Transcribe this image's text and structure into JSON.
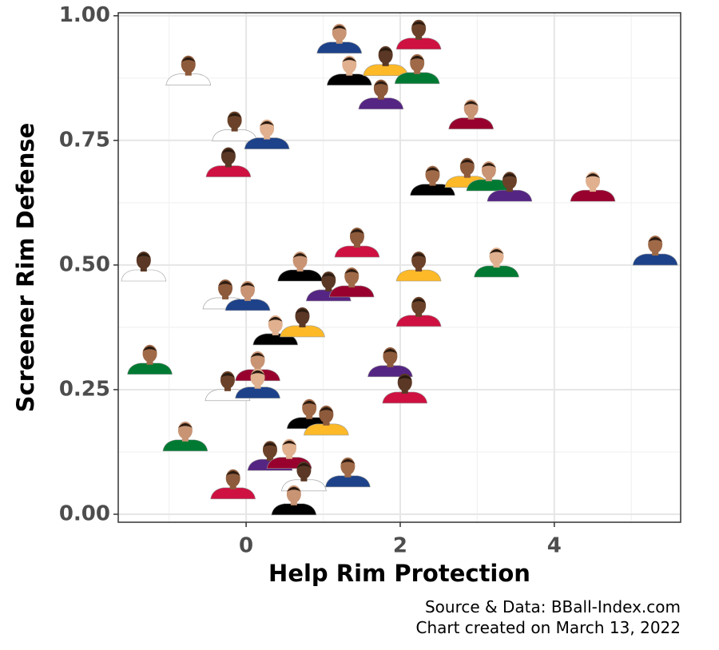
{
  "chart_data": {
    "type": "scatter",
    "x_label": "Help Rim Protection",
    "y_label": "Screener Rim Defense",
    "caption": [
      "Source & Data: BBall-Index.com",
      "Chart created on March 13, 2022"
    ],
    "xlim": [
      -1.66,
      5.64
    ],
    "ylim": [
      -0.016,
      1.006
    ],
    "xticks": [
      0,
      2,
      4
    ],
    "yticks": [
      {
        "value": 0,
        "label": "0.00"
      },
      {
        "value": 0.25,
        "label": "0.25"
      },
      {
        "value": 0.5,
        "label": "0.50"
      },
      {
        "value": 0.75,
        "label": "0.75"
      },
      {
        "value": 1,
        "label": "1.00"
      }
    ],
    "x_minor_grid": [
      -1,
      1,
      3,
      5
    ],
    "y_minor_grid": [
      0.125,
      0.375,
      0.625,
      0.875
    ],
    "grid": true,
    "jersey_colors": [
      "#ffffff",
      "#1d428a",
      "#ce1141",
      "#000000",
      "#fdb927",
      "#007a33",
      "#552583",
      "#98002e"
    ],
    "series": [
      {
        "x": [
          -0.75,
          1.21,
          2.24,
          1.34,
          1.81,
          2.22,
          1.75,
          2.92,
          -0.15,
          0.27,
          -0.23,
          2.42,
          2.87,
          3.15,
          3.42,
          4.5,
          -1.33,
          5.31,
          1.44,
          0.7,
          2.24,
          3.25,
          1.07,
          1.37,
          -0.27,
          0.02,
          2.24,
          0.38,
          0.73,
          -1.25,
          1.87,
          0.15,
          -0.24,
          0.15,
          2.06,
          0.82,
          1.04,
          -0.79,
          0.31,
          0.56,
          0.75,
          1.32,
          -0.17,
          0.62
        ],
        "values": [
          0.888,
          0.952,
          0.96,
          0.888,
          0.907,
          0.891,
          0.84,
          0.8,
          0.776,
          0.76,
          0.704,
          0.667,
          0.683,
          0.676,
          0.655,
          0.655,
          0.495,
          0.527,
          0.543,
          0.495,
          0.495,
          0.503,
          0.455,
          0.463,
          0.439,
          0.436,
          0.404,
          0.367,
          0.383,
          0.308,
          0.303,
          0.295,
          0.255,
          0.26,
          0.25,
          0.199,
          0.186,
          0.154,
          0.115,
          0.119,
          0.074,
          0.082,
          0.058,
          0.026
        ]
      }
    ]
  }
}
